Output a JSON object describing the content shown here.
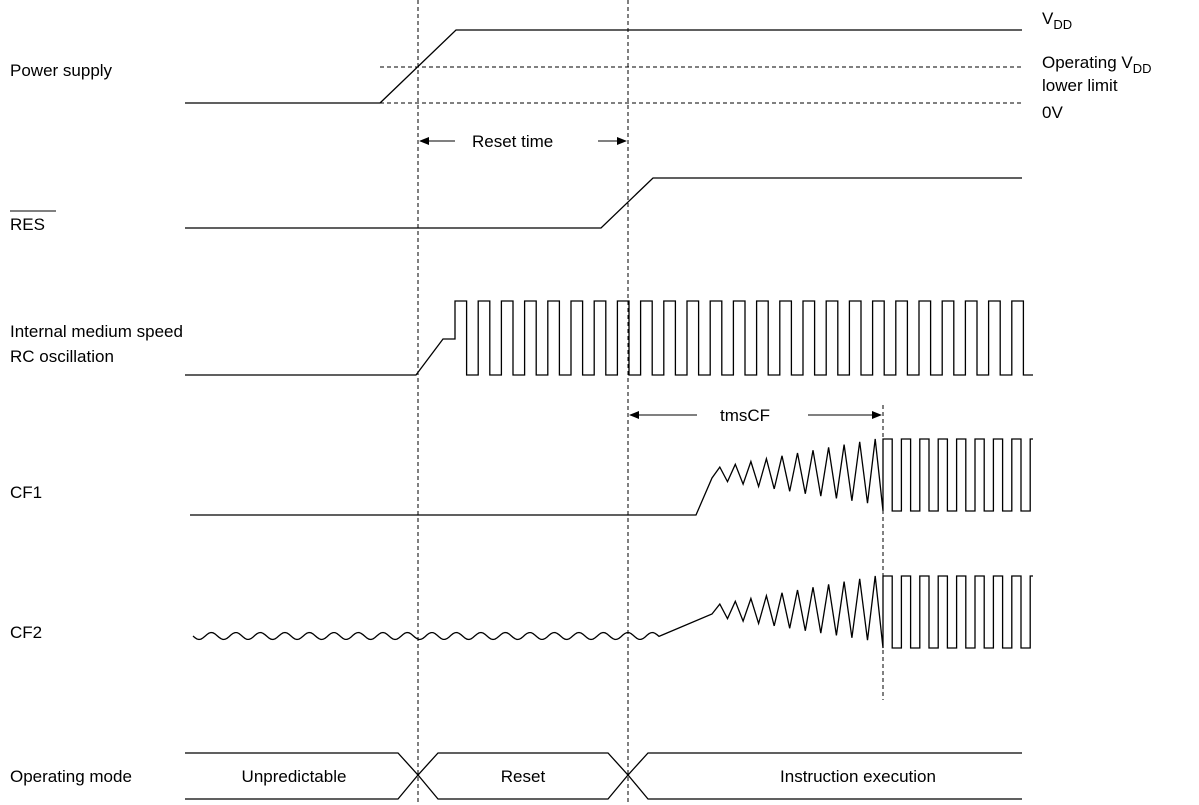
{
  "signals": {
    "power_supply": "Power supply",
    "res": "RES",
    "rc_line1": "Internal medium speed",
    "rc_line2": "RC oscillation",
    "cf1": "CF1",
    "cf2": "CF2",
    "operating_mode": "Operating mode"
  },
  "levels": {
    "vdd_main": "V",
    "vdd_sub": "DD",
    "op_vdd_main": "Operating V",
    "op_vdd_sub": "DD",
    "lower_limit": "lower limit",
    "zero_v": "0V"
  },
  "timings": {
    "reset_time": "Reset time",
    "tmscf": "tmsCF"
  },
  "modes": {
    "unpredictable": "Unpredictable",
    "reset": "Reset",
    "instruction_execution": "Instruction execution"
  }
}
